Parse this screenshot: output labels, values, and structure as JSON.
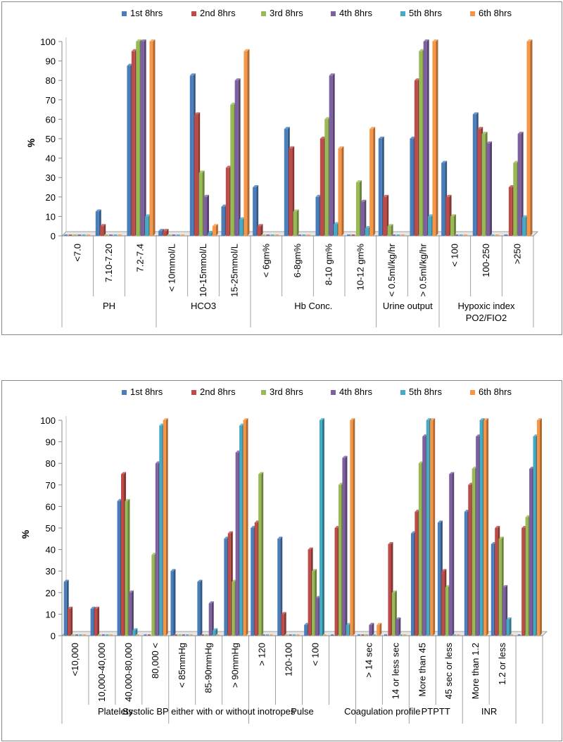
{
  "colors": {
    "series": [
      "#4a7ebb",
      "#be4b48",
      "#98b954",
      "#7d60a0",
      "#46aac5",
      "#f79646"
    ],
    "axis": "#8a8a8a",
    "text": "#000000"
  },
  "chart_data": [
    {
      "type": "bar",
      "ylabel": "%",
      "ylim": [
        0,
        100
      ],
      "yticks": [
        "0",
        "10",
        "20",
        "30",
        "40",
        "50",
        "60",
        "70",
        "80",
        "90",
        "100"
      ],
      "legend_position": "top",
      "grid": false,
      "categories": [
        "<7.0",
        "7.10-7.20",
        "7.2-7.4",
        "< 10mmol/L",
        "10-15mmol/L",
        "15-25mmol/L",
        "< 6gm%",
        "6-8gm%",
        "8-10 gm%",
        "10-12 gm%",
        "< 0.5ml/kg/hr",
        "> 0.5ml/kg/hr",
        "< 100",
        "100-250",
        ">250"
      ],
      "groups": [
        {
          "label": "PH",
          "start": 0,
          "end": 2
        },
        {
          "label": "HCO3",
          "start": 3,
          "end": 5
        },
        {
          "label": "Hb Conc.",
          "start": 6,
          "end": 9
        },
        {
          "label": "Urine output",
          "start": 10,
          "end": 11
        },
        {
          "label": "Hypoxic index\nPO2/FIO2",
          "start": 12,
          "end": 14
        }
      ],
      "series": [
        {
          "name": "1st 8hrs",
          "values": [
            0,
            12.5,
            87.5,
            2.5,
            82.5,
            15,
            25,
            55,
            20,
            0,
            50,
            50,
            37.5,
            62.5,
            0
          ]
        },
        {
          "name": "2nd 8hrs",
          "values": [
            0,
            5,
            95,
            2.5,
            62.5,
            35,
            5,
            45,
            50,
            0,
            20,
            80,
            20,
            55,
            25
          ]
        },
        {
          "name": "3rd 8hrs",
          "values": [
            0,
            0,
            100,
            0,
            32.5,
            67.5,
            0,
            12.5,
            60,
            27.5,
            5,
            95,
            10,
            52.5,
            37.5
          ]
        },
        {
          "name": "4th 8hrs",
          "values": [
            0,
            0,
            100,
            0,
            20,
            80,
            0,
            0,
            82.5,
            17.5,
            0,
            100,
            0,
            47.5,
            52.5
          ]
        },
        {
          "name": "5th 8hrs",
          "values": [
            0,
            0,
            10,
            0,
            1.5,
            8.5,
            0,
            0,
            6,
            4,
            0,
            10,
            0,
            0,
            9.5
          ]
        },
        {
          "name": "6th 8hrs",
          "values": [
            0,
            0,
            100,
            0,
            5,
            95,
            0,
            0,
            45,
            55,
            0,
            100,
            0,
            0,
            100
          ]
        }
      ]
    },
    {
      "type": "bar",
      "ylabel": "%",
      "ylim": [
        0,
        100
      ],
      "yticks": [
        "0",
        "10",
        "20",
        "30",
        "40",
        "50",
        "60",
        "70",
        "80",
        "90",
        "100"
      ],
      "legend_position": "top",
      "grid": false,
      "categories": [
        "<10,000",
        "10,000-40,000",
        "40,000-80,000",
        "80,000 <",
        "< 85mmHg",
        "85-90mmHg",
        "> 90mmHg",
        "> 120",
        "120-100",
        "< 100",
        "",
        "> 14 sec",
        "14 or less sec",
        "More than 45",
        "45 sec or less",
        "More than 1.2",
        "1.2 or less",
        ""
      ],
      "groups": [
        {
          "label": "Platelets",
          "start": 0,
          "end": 3
        },
        {
          "label": "Systolic BP either with or without inotropes",
          "start": 4,
          "end": 6
        },
        {
          "label": "Pulse",
          "start": 7,
          "end": 10
        },
        {
          "label": "Coagulation profile",
          "start": 11,
          "end": 12
        },
        {
          "label": "PTPTT",
          "start": 13,
          "end": 14
        },
        {
          "label": "INR",
          "start": 15,
          "end": 16
        },
        {
          "label": "",
          "start": 17,
          "end": 17
        }
      ],
      "series": [
        {
          "name": "1st 8hrs",
          "values": [
            25,
            12.5,
            62.5,
            0,
            30,
            25,
            45,
            50,
            45,
            5,
            0,
            0,
            0,
            47.5,
            52.5,
            57.5,
            42.5,
            0
          ]
        },
        {
          "name": "2nd 8hrs",
          "values": [
            12.5,
            12.5,
            75,
            0,
            0,
            0,
            47.5,
            52.5,
            10,
            40,
            50,
            0,
            42.5,
            57.5,
            30,
            70,
            50,
            50
          ]
        },
        {
          "name": "3rd 8hrs",
          "values": [
            0,
            0,
            62.5,
            37.5,
            0,
            0,
            25,
            75,
            0,
            30,
            70,
            0,
            20,
            80,
            22.5,
            77.5,
            45,
            55
          ]
        },
        {
          "name": "4th 8hrs",
          "values": [
            0,
            0,
            20,
            80,
            0,
            15,
            85,
            0,
            0,
            17.5,
            82.5,
            5,
            7.5,
            92.5,
            75,
            92.5,
            22.5,
            77.5
          ]
        },
        {
          "name": "5th 8hrs",
          "values": [
            0,
            0,
            2.5,
            97.5,
            0,
            2.5,
            97.5,
            0,
            0,
            100,
            5,
            0,
            0,
            100,
            0,
            100,
            7.5,
            92.5
          ]
        },
        {
          "name": "6th 8hrs",
          "values": [
            0,
            0,
            0,
            100,
            0,
            0,
            100,
            0,
            0,
            0,
            100,
            5,
            0,
            100,
            0,
            100,
            0,
            100
          ]
        }
      ]
    }
  ]
}
